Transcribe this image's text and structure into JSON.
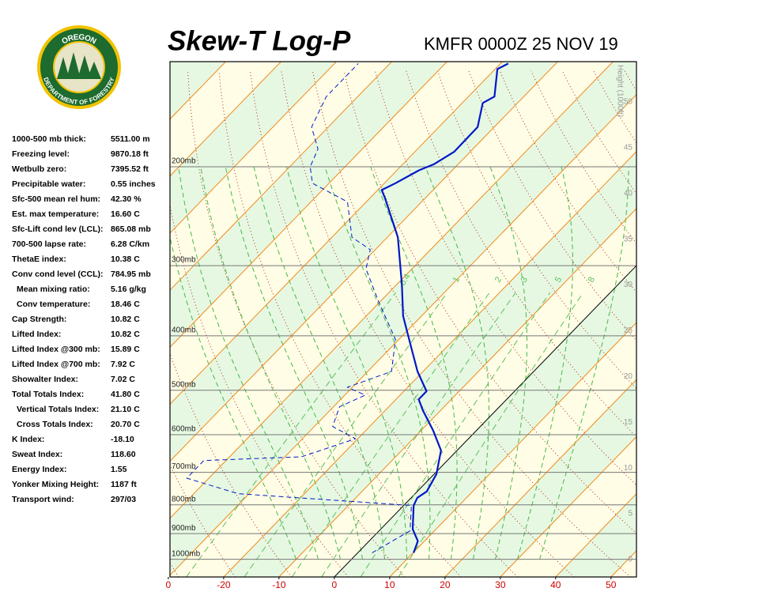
{
  "chart_data": {
    "type": "skewt",
    "title": "Skew-T Log-P",
    "subtitle": "KMFR 0000Z 25 NOV 19",
    "xlim": [
      -29.7,
      54.6
    ],
    "xticks": [
      {
        "value": -30,
        "label": "0"
      },
      -20,
      -10,
      0,
      10,
      20,
      30,
      40,
      50
    ],
    "ylim": [
      1075,
      130
    ],
    "yscale": "log",
    "yticks": [
      {
        "value": 200,
        "label": "200mb"
      },
      {
        "value": 300,
        "label": "300mb"
      },
      {
        "value": 400,
        "label": "400mb"
      },
      {
        "value": 500,
        "label": "500mb"
      },
      {
        "value": 600,
        "label": "600mb"
      },
      {
        "value": 700,
        "label": "700mb"
      },
      {
        "value": 800,
        "label": "800mb"
      },
      {
        "value": 900,
        "label": "900mb"
      },
      {
        "value": 1000,
        "label": "1000mb"
      }
    ],
    "height_axis": {
      "label": "Height (1000ft)",
      "lim": [
        -1.9,
        54.4
      ],
      "ticks": [
        0,
        5,
        10,
        15,
        20,
        25,
        30,
        35,
        40,
        45,
        50
      ]
    },
    "mixing_ratio_labels": [
      {
        "value": 0.4,
        "label": "0.4"
      },
      1,
      2,
      3,
      5,
      8
    ],
    "series": [
      {
        "color": "#0018c8",
        "dash": false,
        "pressure": [
          974,
          928,
          884,
          802,
          777,
          757,
          705,
          640,
          590,
          544,
          519,
          502,
          463,
          420,
          369,
          324,
          267,
          227,
          220,
          214,
          203,
          198,
          188,
          170,
          154,
          150,
          134,
          131
        ],
        "values": [
          10.1,
          8.8,
          5.8,
          1.8,
          1.1,
          1.7,
          0.4,
          -2.9,
          -7.8,
          -13.1,
          -15.9,
          -15.9,
          -21,
          -26.3,
          -33.3,
          -39.1,
          -48.1,
          -57.4,
          -59.3,
          -58,
          -56,
          -54.4,
          -52.9,
          -53,
          -56.3,
          -55.3,
          -59.6,
          -58.6
        ]
      },
      {
        "color": "#0018c8",
        "dash": true,
        "pressure": [
          974,
          922,
          890,
          802,
          764,
          717,
          667,
          657,
          610,
          580,
          535,
          510,
          494,
          463,
          406,
          347,
          304,
          281,
          267,
          231,
          214,
          200,
          186,
          170,
          150,
          131
        ],
        "values": [
          2.6,
          4.4,
          5.6,
          1.4,
          -32,
          -44,
          -44,
          -27,
          -20.4,
          -26.7,
          -28.9,
          -26.3,
          -30.9,
          -25.7,
          -30.6,
          -40.4,
          -48.3,
          -50.9,
          -56.4,
          -63.4,
          -73,
          -76.3,
          -78,
          -83,
          -85.7,
          -85.7
        ]
      }
    ]
  },
  "logo": {
    "top": "OREGON",
    "bottom": "DEPARTMENT OF FORESTRY"
  },
  "indices": [
    {
      "label": "1000-500 mb thick:",
      "value": "5511.00 m"
    },
    {
      "label": "Freezing level:",
      "value": "9870.18 ft"
    },
    {
      "label": "Wetbulb zero:",
      "value": "7395.52 ft"
    },
    {
      "label": "Precipitable water:",
      "value": "0.55 inches"
    },
    {
      "label": "Sfc-500 mean rel hum:",
      "value": "42.30 %"
    },
    {
      "label": "Est. max temperature:",
      "value": "16.60 C"
    },
    {
      "label": "Sfc-Lift cond lev (LCL):",
      "value": "865.08 mb"
    },
    {
      "label": "700-500 lapse rate:",
      "value": "6.28 C/km"
    },
    {
      "label": "ThetaE index:",
      "value": "10.38 C"
    },
    {
      "label": "Conv cond level (CCL):",
      "value": "784.95 mb",
      "sub": [
        {
          "label": "Mean mixing ratio:",
          "value": "5.16 g/kg"
        },
        {
          "label": "Conv temperature:",
          "value": "18.46 C"
        }
      ]
    },
    {
      "label": "Cap Strength:",
      "value": "10.82 C"
    },
    {
      "label": "Lifted Index:",
      "value": "10.82 C"
    },
    {
      "label": "Lifted Index @300 mb:",
      "value": "15.89 C"
    },
    {
      "label": "Lifted Index @700 mb:",
      "value": "7.92 C"
    },
    {
      "label": "Showalter Index:",
      "value": "7.02 C"
    },
    {
      "label": "Total Totals Index:",
      "value": "41.80 C",
      "sub": [
        {
          "label": "Vertical Totals Index:",
          "value": "21.10 C"
        },
        {
          "label": "Cross Totals Index:",
          "value": "20.70 C"
        }
      ]
    },
    {
      "label": "K Index:",
      "value": "-18.10"
    },
    {
      "label": "Sweat Index:",
      "value": "118.60"
    },
    {
      "label": "Energy Index:",
      "value": "1.55"
    },
    {
      "label": "Yonker Mixing Height:",
      "value": "1187 ft"
    },
    {
      "label": "Transport wind:",
      "value": "297/03"
    }
  ]
}
